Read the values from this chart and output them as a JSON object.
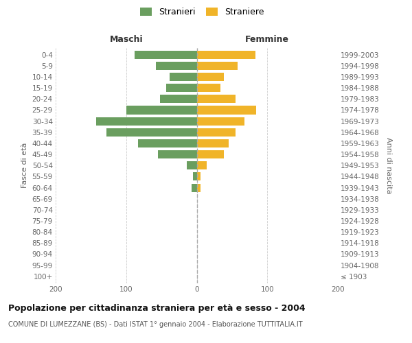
{
  "age_groups": [
    "100+",
    "95-99",
    "90-94",
    "85-89",
    "80-84",
    "75-79",
    "70-74",
    "65-69",
    "60-64",
    "55-59",
    "50-54",
    "45-49",
    "40-44",
    "35-39",
    "30-34",
    "25-29",
    "20-24",
    "15-19",
    "10-14",
    "5-9",
    "0-4"
  ],
  "birth_years": [
    "≤ 1903",
    "1904-1908",
    "1909-1913",
    "1914-1918",
    "1919-1923",
    "1924-1928",
    "1929-1933",
    "1934-1938",
    "1939-1943",
    "1944-1948",
    "1949-1953",
    "1954-1958",
    "1959-1963",
    "1964-1968",
    "1969-1973",
    "1974-1978",
    "1979-1983",
    "1984-1988",
    "1989-1993",
    "1994-1998",
    "1999-2003"
  ],
  "maschi": [
    0,
    0,
    0,
    0,
    0,
    0,
    0,
    0,
    7,
    5,
    14,
    55,
    83,
    128,
    143,
    100,
    52,
    43,
    38,
    58,
    88
  ],
  "femmine": [
    0,
    0,
    0,
    0,
    0,
    0,
    0,
    0,
    5,
    5,
    14,
    38,
    45,
    55,
    68,
    84,
    55,
    34,
    38,
    58,
    83
  ],
  "maschi_color": "#6a9e5f",
  "femmine_color": "#f0b429",
  "bar_height": 0.75,
  "xlim": 200,
  "title": "Popolazione per cittadinanza straniera per età e sesso - 2004",
  "subtitle": "COMUNE DI LUMEZZANE (BS) - Dati ISTAT 1° gennaio 2004 - Elaborazione TUTTITALIA.IT",
  "ylabel_left": "Fasce di età",
  "ylabel_right": "Anni di nascita",
  "xlabel_left": "Maschi",
  "xlabel_right": "Femmine",
  "legend_maschi": "Stranieri",
  "legend_femmine": "Straniere",
  "background_color": "#ffffff",
  "grid_color": "#cccccc",
  "tick_color": "#666666",
  "title_fontsize": 9,
  "subtitle_fontsize": 7,
  "axis_label_fontsize": 8,
  "tick_fontsize": 7.5,
  "legend_fontsize": 9,
  "header_fontsize": 9
}
